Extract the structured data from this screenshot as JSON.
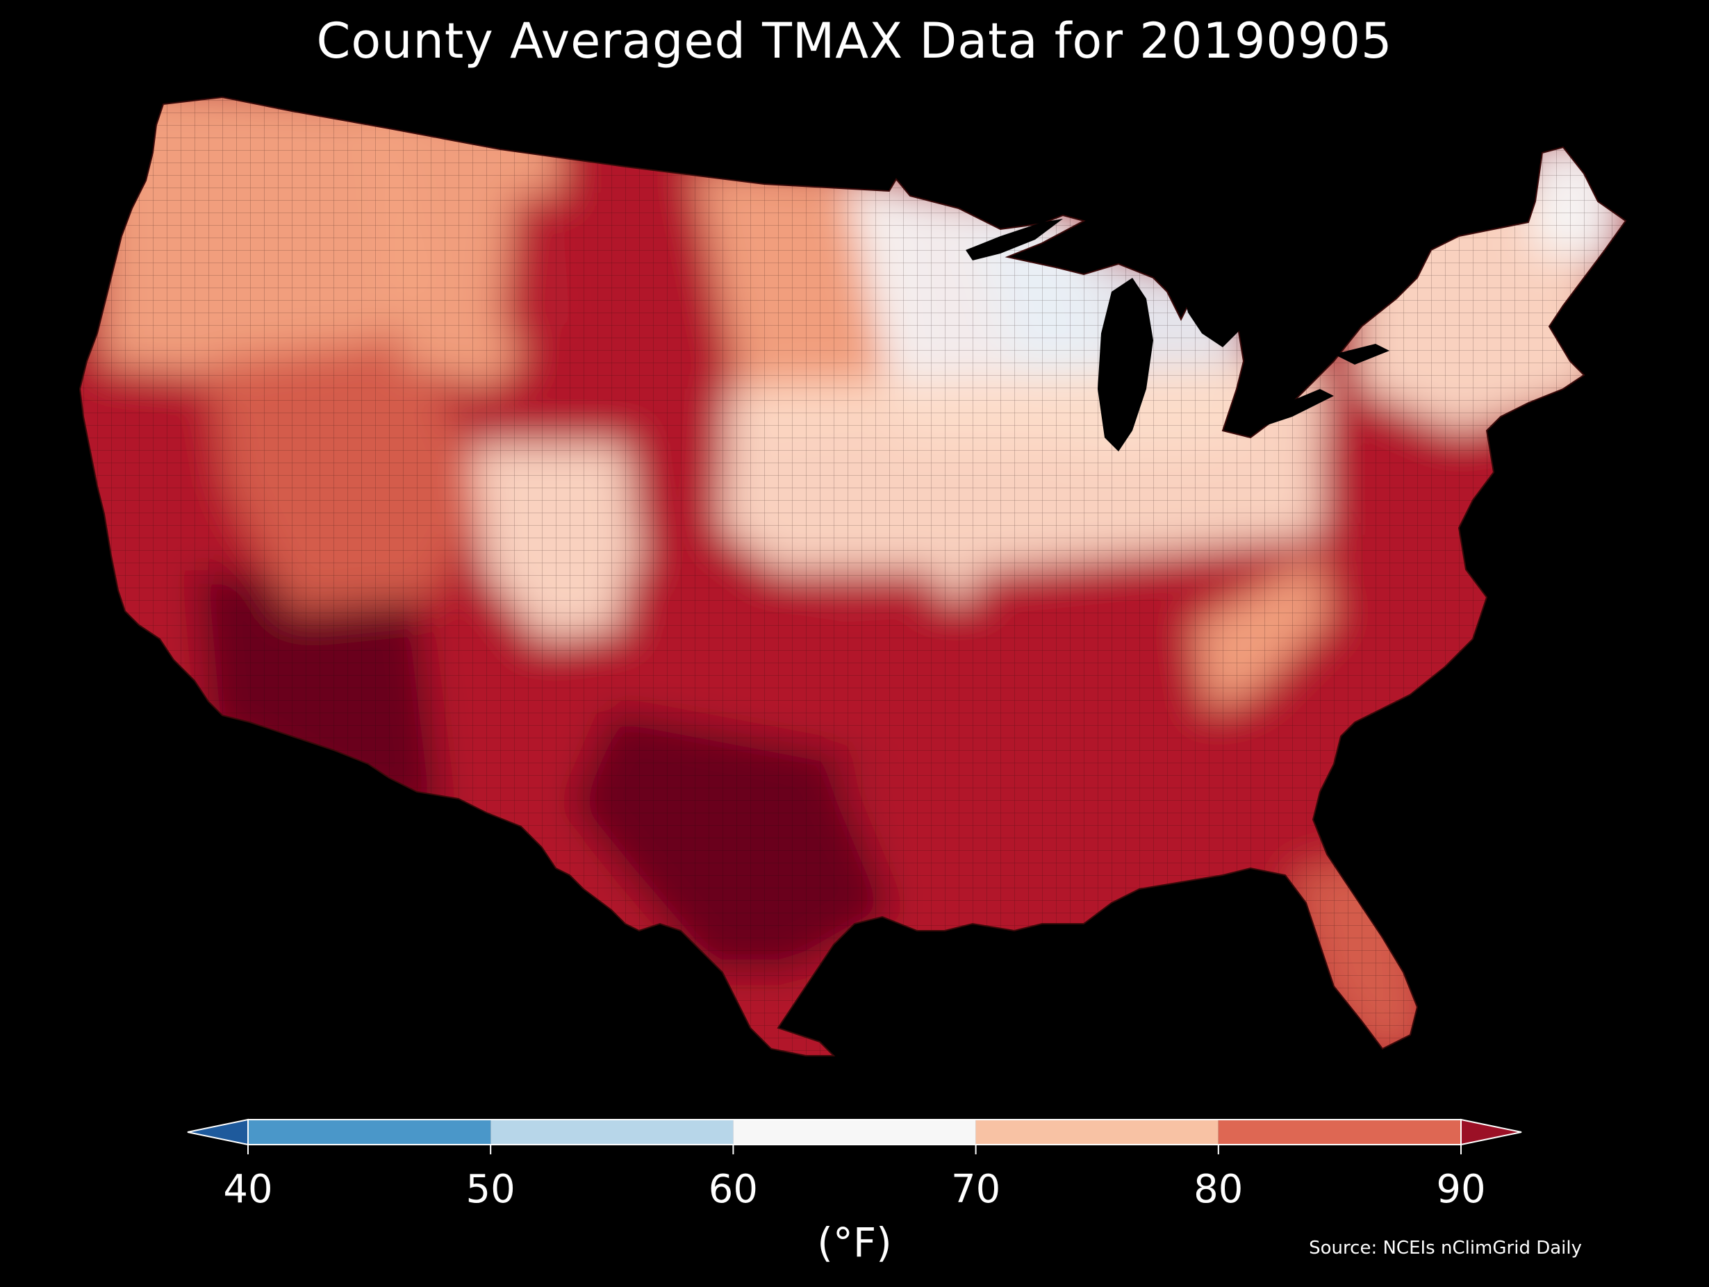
{
  "title": "County Averaged TMAX Data for 20190905",
  "colorbar": {
    "ticks": [
      "40",
      "50",
      "60",
      "70",
      "80",
      "90"
    ],
    "unit": "(°F)",
    "under_color": "#1e5a9c",
    "over_color": "#9b1026",
    "bins": [
      {
        "from": 40,
        "to": 50,
        "color": "#4a97c9"
      },
      {
        "from": 50,
        "to": 60,
        "color": "#b7d6e9"
      },
      {
        "from": 60,
        "to": 70,
        "color": "#f7f7f7"
      },
      {
        "from": 70,
        "to": 80,
        "color": "#f8c2a4"
      },
      {
        "from": 80,
        "to": 90,
        "color": "#de6753"
      }
    ]
  },
  "source": "Source: NCEIs nClimGrid Daily",
  "map": {
    "subject": "contiguous-us-counties",
    "background_color": "#000000",
    "palette": {
      "very_hot": "#67001f",
      "hot": "#b2182b",
      "warm": "#d6604d",
      "mild_warm": "#f4a582",
      "neutral_warm": "#fddbc7",
      "neutral": "#f7f7f7",
      "cool": "#e8eff5"
    },
    "regions": [
      {
        "name": "pacific-northwest",
        "level": "mild_warm"
      },
      {
        "name": "california-coast",
        "level": "hot"
      },
      {
        "name": "desert-southwest",
        "level": "very_hot"
      },
      {
        "name": "great-basin",
        "level": "warm"
      },
      {
        "name": "northern-rockies",
        "level": "mild_warm"
      },
      {
        "name": "montana-wyoming-hotspot",
        "level": "hot"
      },
      {
        "name": "colorado-high-country",
        "level": "neutral_warm"
      },
      {
        "name": "northern-plains",
        "level": "mild_warm"
      },
      {
        "name": "upper-midwest",
        "level": "neutral"
      },
      {
        "name": "great-lakes",
        "level": "cool"
      },
      {
        "name": "midwest",
        "level": "neutral_warm"
      },
      {
        "name": "southern-plains",
        "level": "hot"
      },
      {
        "name": "texas",
        "level": "very_hot"
      },
      {
        "name": "gulf-coast",
        "level": "hot"
      },
      {
        "name": "southeast",
        "level": "hot"
      },
      {
        "name": "appalachians",
        "level": "mild_warm"
      },
      {
        "name": "mid-atlantic",
        "level": "hot"
      },
      {
        "name": "new-england",
        "level": "neutral_warm"
      },
      {
        "name": "maine",
        "level": "neutral"
      },
      {
        "name": "florida",
        "level": "warm"
      }
    ]
  }
}
